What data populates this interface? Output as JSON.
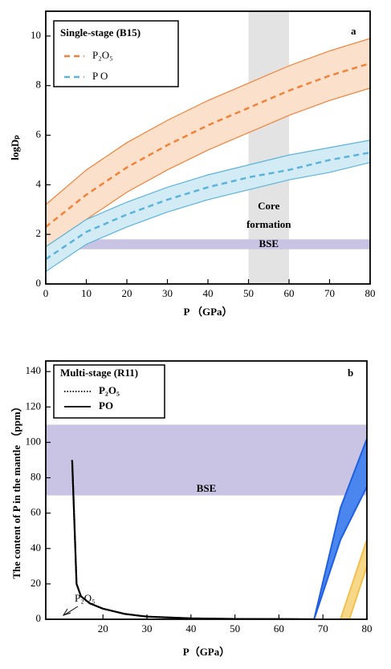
{
  "chart_data": [
    {
      "type": "line",
      "panel_label": "a",
      "xlabel": "P （GPa）",
      "ylabel": "logDₚ",
      "xlim": [
        0,
        80
      ],
      "ylim": [
        0,
        11
      ],
      "xticks": [
        0,
        10,
        20,
        30,
        40,
        50,
        60,
        70,
        80
      ],
      "yticks": [
        0,
        2,
        4,
        6,
        8,
        10
      ],
      "legend_title": "Single-stage (B15)",
      "legend": "upper left",
      "x": [
        0,
        10,
        20,
        30,
        40,
        50,
        60,
        70,
        80
      ],
      "series": [
        {
          "name": "P₂O₅",
          "color": "#f0833a",
          "fill": "#fbe0cc",
          "style": "dashed",
          "values": [
            2.3,
            3.6,
            4.7,
            5.6,
            6.4,
            7.1,
            7.8,
            8.4,
            8.9
          ],
          "upper": [
            3.2,
            4.6,
            5.7,
            6.6,
            7.4,
            8.1,
            8.8,
            9.4,
            9.9
          ],
          "lower": [
            1.5,
            2.6,
            3.7,
            4.6,
            5.4,
            6.1,
            6.8,
            7.4,
            7.9
          ]
        },
        {
          "name": "P O",
          "color": "#5ab4d9",
          "fill": "#d3ebf5",
          "style": "dashed",
          "values": [
            1.0,
            2.1,
            2.8,
            3.4,
            3.9,
            4.3,
            4.6,
            5.0,
            5.3
          ],
          "upper": [
            1.5,
            2.6,
            3.3,
            3.9,
            4.4,
            4.8,
            5.2,
            5.5,
            5.8
          ],
          "lower": [
            0.5,
            1.6,
            2.3,
            2.9,
            3.4,
            3.8,
            4.2,
            4.5,
            4.9
          ]
        }
      ],
      "regions": [
        {
          "axis": "x",
          "range": [
            50,
            60
          ],
          "color": "#e3e3e3",
          "label": [
            "Core",
            "formation"
          ]
        },
        {
          "axis": "y",
          "range": [
            1.4,
            1.8
          ],
          "color": "#c9c3e4",
          "label": [
            "BSE"
          ]
        }
      ]
    },
    {
      "type": "line",
      "panel_label": "b",
      "xlabel": "P（GPa）",
      "ylabel": "The content of P in the mantle （ppm）",
      "xlim": [
        7,
        80
      ],
      "ylim": [
        0,
        146
      ],
      "xticks": [
        20,
        30,
        40,
        50,
        60,
        70,
        80
      ],
      "yticks": [
        0,
        20,
        40,
        60,
        80,
        100,
        120,
        140
      ],
      "legend_title": "Multi-stage (R11)",
      "legend": "upper left",
      "annotation": "P₂O₅",
      "series": [
        {
          "name": "P₂O₅",
          "color": "#000000",
          "style": "dotted",
          "x": [
            13,
            14,
            15,
            17,
            20,
            25,
            30,
            40,
            50,
            60,
            68
          ],
          "values": [
            90,
            20,
            13,
            9,
            6,
            3,
            1.5,
            0.5,
            0.2,
            0.1,
            0
          ]
        },
        {
          "name": "PO",
          "color": "#000000",
          "style": "solid",
          "x": [
            13,
            14,
            15,
            17,
            20,
            25,
            30,
            40,
            50,
            60,
            68
          ],
          "values": [
            90,
            20,
            13,
            9,
            6,
            3,
            1.5,
            0.5,
            0.2,
            0.1,
            0
          ]
        }
      ],
      "bands": [
        {
          "color": "#1f5fe0",
          "fill": "#4a86ee",
          "x": [
            68,
            74,
            80
          ],
          "upper": [
            0,
            63,
            102
          ],
          "lower": [
            0,
            45,
            75
          ]
        },
        {
          "color": "#f2c04a",
          "fill": "#f7d889",
          "x": [
            74,
            76,
            80
          ],
          "upper": [
            0,
            15,
            45
          ],
          "lower": [
            0,
            0,
            30
          ]
        }
      ],
      "regions": [
        {
          "axis": "y",
          "range": [
            70,
            110
          ],
          "color": "#c9c3e4",
          "label": [
            "BSE"
          ]
        }
      ]
    }
  ]
}
